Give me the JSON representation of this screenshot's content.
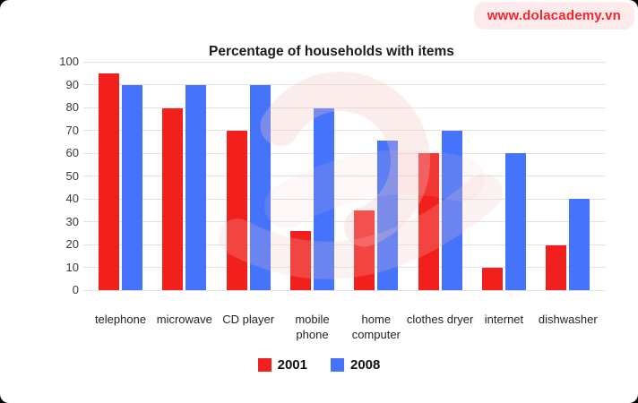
{
  "badge": {
    "text": "www.dolacademy.vn",
    "bg": "#fdeaea",
    "color": "#f5252f"
  },
  "chart_data": {
    "type": "bar",
    "title": "Percentage of households with items",
    "categories": [
      "telephone",
      "microwave",
      "CD player",
      "mobile phone",
      "home computer",
      "clothes dryer",
      "internet",
      "dishwasher"
    ],
    "series": [
      {
        "name": "2001",
        "color": "#f1201d",
        "values": [
          95,
          79.5,
          70,
          26,
          35,
          60,
          10,
          19.5
        ]
      },
      {
        "name": "2008",
        "color": "#4573fb",
        "values": [
          90,
          90,
          90,
          79.5,
          65.5,
          70,
          60,
          40
        ]
      }
    ],
    "xlabel": "",
    "ylabel": "",
    "ylim": [
      0,
      100
    ],
    "ytick_step": 10,
    "yticks": [
      0,
      10,
      20,
      30,
      40,
      50,
      60,
      70,
      80,
      90,
      100
    ],
    "grid": true,
    "legend_position": "bottom",
    "gridline_color": "#e2e2e2",
    "watermark_color": "#f6c4c4"
  }
}
